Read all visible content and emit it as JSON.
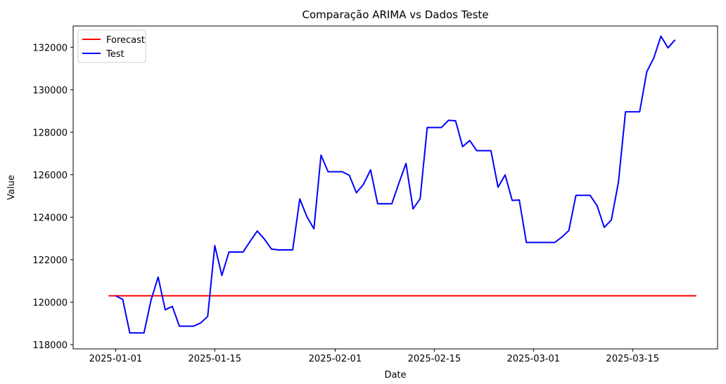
{
  "chart_data": {
    "type": "line",
    "title": "Comparação ARIMA vs Dados Teste",
    "xlabel": "Date",
    "ylabel": "Value",
    "xlim": [
      "2024-12-26",
      "2025-03-27"
    ],
    "ylim": [
      117800,
      133000
    ],
    "x_ticks": [
      "2025-01-01",
      "2025-01-15",
      "2025-02-01",
      "2025-02-15",
      "2025-03-01",
      "2025-03-15"
    ],
    "y_ticks": [
      118000,
      120000,
      122000,
      124000,
      126000,
      128000,
      130000,
      132000
    ],
    "grid": false,
    "legend_position": "top-left",
    "series": [
      {
        "name": "Forecast",
        "color": "#ff0000",
        "x": [
          "2024-12-31",
          "2025-03-24"
        ],
        "values": [
          120300,
          120300
        ]
      },
      {
        "name": "Test",
        "color": "#0000ff",
        "x": [
          "2025-01-01",
          "2025-01-02",
          "2025-01-03",
          "2025-01-04",
          "2025-01-05",
          "2025-01-06",
          "2025-01-07",
          "2025-01-08",
          "2025-01-09",
          "2025-01-10",
          "2025-01-11",
          "2025-01-12",
          "2025-01-13",
          "2025-01-14",
          "2025-01-15",
          "2025-01-16",
          "2025-01-17",
          "2025-01-18",
          "2025-01-19",
          "2025-01-20",
          "2025-01-21",
          "2025-01-22",
          "2025-01-23",
          "2025-01-24",
          "2025-01-25",
          "2025-01-26",
          "2025-01-27",
          "2025-01-28",
          "2025-01-29",
          "2025-01-30",
          "2025-01-31",
          "2025-02-01",
          "2025-02-02",
          "2025-02-03",
          "2025-02-04",
          "2025-02-05",
          "2025-02-06",
          "2025-02-07",
          "2025-02-08",
          "2025-02-09",
          "2025-02-10",
          "2025-02-11",
          "2025-02-12",
          "2025-02-13",
          "2025-02-14",
          "2025-02-15",
          "2025-02-16",
          "2025-02-17",
          "2025-02-18",
          "2025-02-19",
          "2025-02-20",
          "2025-02-21",
          "2025-02-22",
          "2025-02-23",
          "2025-02-24",
          "2025-02-25",
          "2025-02-26",
          "2025-02-27",
          "2025-02-28",
          "2025-03-01",
          "2025-03-02",
          "2025-03-03",
          "2025-03-04",
          "2025-03-05",
          "2025-03-06",
          "2025-03-07",
          "2025-03-08",
          "2025-03-09",
          "2025-03-10",
          "2025-03-11",
          "2025-03-12",
          "2025-03-13",
          "2025-03-14",
          "2025-03-15",
          "2025-03-16",
          "2025-03-17",
          "2025-03-18",
          "2025-03-19",
          "2025-03-20",
          "2025-03-21"
        ],
        "values": [
          120300,
          120130,
          118550,
          118550,
          118550,
          120100,
          121180,
          119640,
          119800,
          118870,
          118870,
          118870,
          119020,
          119330,
          122660,
          121260,
          122360,
          122360,
          122360,
          122870,
          123350,
          122970,
          122500,
          122460,
          122460,
          122460,
          124860,
          124030,
          123450,
          126920,
          126140,
          126140,
          126140,
          125970,
          125150,
          125550,
          126230,
          124630,
          124630,
          124630,
          125600,
          126530,
          124390,
          124870,
          128220,
          128220,
          128220,
          128560,
          128540,
          127320,
          127610,
          127130,
          127130,
          127130,
          125410,
          125990,
          124790,
          124810,
          122810,
          122810,
          122810,
          122810,
          122810,
          123060,
          123370,
          125030,
          125030,
          125030,
          124530,
          123520,
          123870,
          125640,
          128960,
          128960,
          128960,
          130840,
          131500,
          132520,
          131970,
          132350
        ]
      }
    ]
  }
}
